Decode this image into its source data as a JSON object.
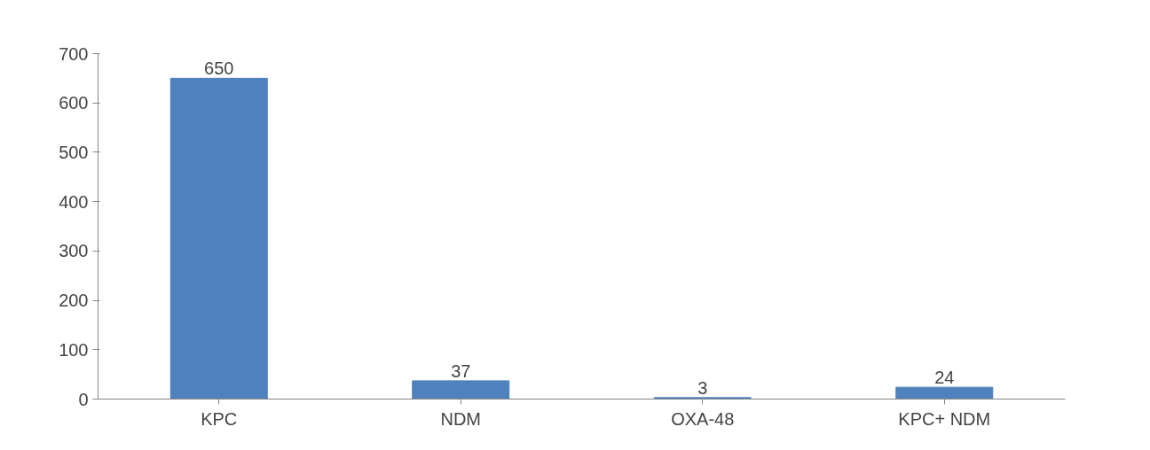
{
  "chart_data": {
    "type": "bar",
    "categories": [
      "KPC",
      "NDM",
      "OXA-48",
      "KPC+ NDM"
    ],
    "values": [
      650,
      37,
      3,
      24
    ],
    "color": "#4f81bd",
    "ylim": [
      0,
      700
    ],
    "yticks": [
      0,
      100,
      200,
      300,
      400,
      500,
      600,
      700
    ],
    "grid": false,
    "data_labels": true
  }
}
